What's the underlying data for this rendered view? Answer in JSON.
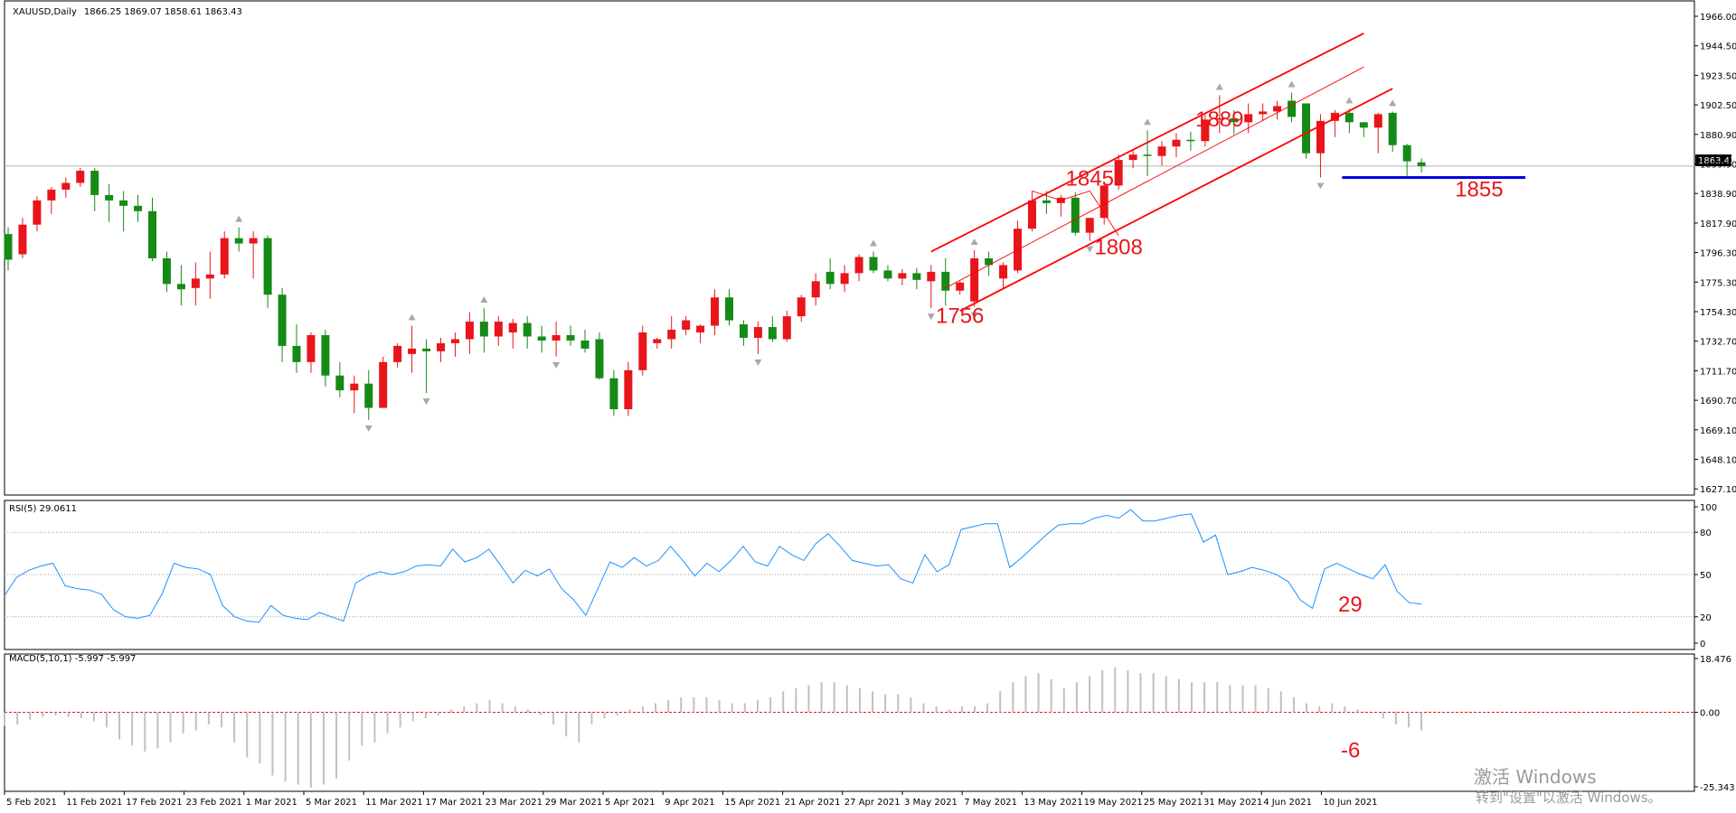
{
  "header": {
    "symbol_label": "XAUUSD,Daily",
    "ohlc_label": "1866.25 1869.07 1858.61 1863.43"
  },
  "price_axis": {
    "ticks": [
      "1966.00",
      "1944.50",
      "1923.50",
      "1902.50",
      "1880.90",
      "1859.90",
      "1838.90",
      "1817.90",
      "1796.30",
      "1775.30",
      "1754.30",
      "1732.70",
      "1711.70",
      "1690.70",
      "1669.10",
      "1648.10",
      "1627.10"
    ],
    "current_price_label": "1863.43",
    "current_price": 1863.43,
    "ylim": [
      1622,
      1972
    ]
  },
  "time_axis": {
    "ticks": [
      "5 Feb 2021",
      "11 Feb 2021",
      "17 Feb 2021",
      "23 Feb 2021",
      "1 Mar 2021",
      "5 Mar 2021",
      "11 Mar 2021",
      "17 Mar 2021",
      "23 Mar 2021",
      "29 Mar 2021",
      "5 Apr 2021",
      "9 Apr 2021",
      "15 Apr 2021",
      "21 Apr 2021",
      "27 Apr 2021",
      "3 May 2021",
      "7 May 2021",
      "13 May 2021",
      "19 May 2021",
      "25 May 2021",
      "31 May 2021",
      "4 Jun 2021",
      "10 Jun 2021"
    ]
  },
  "chart_data": [
    {
      "type": "candlestick",
      "title": "XAUUSD,Daily",
      "ylim": [
        1622,
        1972
      ],
      "colors": {
        "up": "#e8151b",
        "down": "#168a16",
        "doji": "#168a16"
      },
      "candles": [
        [
          1813,
          1818,
          1786,
          1794
        ],
        [
          1798,
          1825,
          1795,
          1820
        ],
        [
          1820,
          1841,
          1815,
          1838
        ],
        [
          1838,
          1848,
          1828,
          1846
        ],
        [
          1846,
          1855,
          1840,
          1851
        ],
        [
          1851,
          1862,
          1848,
          1860
        ],
        [
          1860,
          1862,
          1830,
          1842
        ],
        [
          1842,
          1850,
          1822,
          1838
        ],
        [
          1838,
          1845,
          1815,
          1834
        ],
        [
          1834,
          1842,
          1822,
          1830
        ],
        [
          1830,
          1840,
          1793,
          1795
        ],
        [
          1795,
          1800,
          1770,
          1776
        ],
        [
          1776,
          1790,
          1760,
          1772
        ],
        [
          1773,
          1792,
          1760,
          1780
        ],
        [
          1780,
          1800,
          1765,
          1783
        ],
        [
          1783,
          1815,
          1780,
          1810
        ],
        [
          1810,
          1818,
          1800,
          1806
        ],
        [
          1806,
          1815,
          1780,
          1810
        ],
        [
          1810,
          1812,
          1758,
          1768
        ],
        [
          1768,
          1773,
          1718,
          1730
        ],
        [
          1730,
          1746,
          1710,
          1718
        ],
        [
          1718,
          1740,
          1710,
          1738
        ],
        [
          1738,
          1742,
          1700,
          1708
        ],
        [
          1708,
          1718,
          1692,
          1697
        ],
        [
          1697,
          1708,
          1680,
          1702
        ],
        [
          1702,
          1712,
          1675,
          1684
        ],
        [
          1684,
          1722,
          1684,
          1718
        ],
        [
          1718,
          1732,
          1714,
          1730
        ],
        [
          1724,
          1745,
          1710,
          1728
        ],
        [
          1728,
          1735,
          1695,
          1726
        ],
        [
          1726,
          1736,
          1718,
          1732
        ],
        [
          1732,
          1740,
          1722,
          1735
        ],
        [
          1735,
          1755,
          1724,
          1748
        ],
        [
          1748,
          1758,
          1725,
          1737
        ],
        [
          1737,
          1752,
          1730,
          1748
        ],
        [
          1740,
          1750,
          1728,
          1747
        ],
        [
          1747,
          1752,
          1728,
          1737
        ],
        [
          1737,
          1745,
          1725,
          1734
        ],
        [
          1734,
          1748,
          1722,
          1738
        ],
        [
          1738,
          1745,
          1730,
          1734
        ],
        [
          1734,
          1742,
          1725,
          1728
        ],
        [
          1735,
          1740,
          1705,
          1706
        ],
        [
          1706,
          1712,
          1678,
          1683
        ],
        [
          1683,
          1718,
          1678,
          1712
        ],
        [
          1712,
          1745,
          1708,
          1740
        ],
        [
          1732,
          1736,
          1728,
          1735
        ],
        [
          1735,
          1752,
          1728,
          1742
        ],
        [
          1742,
          1752,
          1738,
          1749
        ],
        [
          1740,
          1746,
          1732,
          1745
        ],
        [
          1745,
          1772,
          1738,
          1766
        ],
        [
          1766,
          1772,
          1745,
          1749
        ],
        [
          1746,
          1749,
          1730,
          1736
        ],
        [
          1736,
          1748,
          1724,
          1744
        ],
        [
          1744,
          1752,
          1733,
          1735
        ],
        [
          1735,
          1756,
          1733,
          1752
        ],
        [
          1752,
          1768,
          1748,
          1766
        ],
        [
          1766,
          1784,
          1760,
          1778
        ],
        [
          1785,
          1795,
          1772,
          1776
        ],
        [
          1776,
          1790,
          1770,
          1784
        ],
        [
          1784,
          1798,
          1778,
          1796
        ],
        [
          1796,
          1800,
          1784,
          1786
        ],
        [
          1786,
          1790,
          1778,
          1780
        ],
        [
          1780,
          1787,
          1775,
          1784
        ],
        [
          1784,
          1788,
          1772,
          1779
        ],
        [
          1778,
          1790,
          1758,
          1785
        ],
        [
          1785,
          1795,
          1760,
          1771
        ],
        [
          1771,
          1778,
          1768,
          1777
        ],
        [
          1763,
          1801,
          1759,
          1795
        ],
        [
          1795,
          1800,
          1782,
          1790
        ],
        [
          1780,
          1792,
          1772,
          1790
        ],
        [
          1786,
          1823,
          1784,
          1817
        ],
        [
          1817,
          1845,
          1815,
          1838
        ],
        [
          1838,
          1845,
          1828,
          1836
        ],
        [
          1836,
          1842,
          1826,
          1840
        ],
        [
          1840,
          1844,
          1812,
          1814
        ],
        [
          1814,
          1825,
          1808,
          1825
        ],
        [
          1825,
          1852,
          1820,
          1849
        ],
        [
          1849,
          1872,
          1846,
          1868
        ],
        [
          1868,
          1875,
          1862,
          1872
        ],
        [
          1872,
          1890,
          1856,
          1871
        ],
        [
          1871,
          1882,
          1864,
          1878
        ],
        [
          1878,
          1888,
          1870,
          1883
        ],
        [
          1883,
          1889,
          1875,
          1882
        ],
        [
          1882,
          1903,
          1878,
          1898
        ],
        [
          1898,
          1916,
          1888,
          1899
        ],
        [
          1899,
          1905,
          1887,
          1896
        ],
        [
          1896,
          1910,
          1888,
          1902
        ],
        [
          1902,
          1910,
          1897,
          1904
        ],
        [
          1904,
          1912,
          1898,
          1908
        ],
        [
          1912,
          1918,
          1896,
          1900
        ],
        [
          1910,
          1910,
          1869,
          1873
        ],
        [
          1873,
          1902,
          1855,
          1897
        ],
        [
          1897,
          1905,
          1885,
          1903
        ],
        [
          1903,
          1906,
          1888,
          1896
        ],
        [
          1896,
          1896,
          1885,
          1892
        ],
        [
          1892,
          1903,
          1873,
          1902
        ],
        [
          1903,
          1904,
          1874,
          1879
        ],
        [
          1879,
          1880,
          1856,
          1867
        ],
        [
          1866.25,
          1869.07,
          1858.61,
          1863.43
        ]
      ]
    },
    {
      "type": "line",
      "title": "RSI(5) 29.0611",
      "ylim": [
        0,
        100
      ],
      "ticks": [
        100,
        80,
        50,
        20,
        0
      ],
      "tick_labels": [
        "100",
        "80",
        "50",
        "20",
        "0"
      ],
      "levels": [
        80,
        50,
        20
      ],
      "color": "#1e90ff",
      "series": [
        {
          "values": [
            35,
            48,
            53,
            56,
            58,
            42,
            40,
            39,
            36,
            25,
            20,
            19,
            21,
            36,
            58,
            55,
            54,
            50,
            28,
            20,
            17,
            16,
            28,
            21,
            19,
            18,
            23,
            20,
            17,
            44,
            49,
            52,
            50,
            52,
            56,
            57,
            56,
            68,
            59,
            62,
            68,
            56,
            44,
            53,
            49,
            54,
            40,
            32,
            21,
            40,
            59,
            55,
            62,
            56,
            60,
            70,
            60,
            49,
            58,
            52,
            60,
            70,
            59,
            56,
            70,
            64,
            60,
            72,
            79,
            70,
            60,
            58,
            56,
            57,
            47,
            44,
            64,
            52,
            57,
            82,
            84,
            86,
            86,
            55,
            62,
            70,
            78,
            85,
            86,
            86,
            90,
            92,
            90,
            96,
            88,
            88,
            90,
            92,
            93,
            73,
            78,
            50,
            52,
            55,
            53,
            50,
            45,
            32,
            26,
            54,
            58,
            54,
            50,
            47,
            57,
            38,
            30,
            29
          ]
        }
      ]
    },
    {
      "type": "bar",
      "title": "MACD(5,10,1) -5.997 -5.997",
      "ylim": [
        -25.343,
        18.476
      ],
      "ticks": [
        18.476,
        0.0,
        -25.343
      ],
      "tick_labels": [
        "18.476",
        "0.00",
        "-25.343"
      ],
      "signal_line": 0,
      "colors": {
        "bar": "#c0c0c0",
        "signal": "#e8151b"
      },
      "values": [
        -4.5,
        -4,
        -2.5,
        -1.5,
        -1,
        -1.5,
        -2,
        -3,
        -5,
        -9,
        -11,
        -13,
        -12,
        -10,
        -7,
        -6,
        -4,
        -5,
        -10,
        -15,
        -17,
        -21,
        -23,
        -24,
        -25,
        -24,
        -22,
        -16,
        -11,
        -10,
        -7,
        -5,
        -3,
        -2,
        -1,
        1,
        2,
        3,
        4,
        3,
        2,
        1,
        -1,
        -4,
        -8,
        -10,
        -4,
        -2,
        -1,
        1,
        2,
        3,
        4,
        5,
        5,
        5,
        4,
        3,
        3,
        4,
        5,
        7,
        8,
        9,
        10,
        10,
        9,
        8,
        7,
        6,
        6,
        5,
        3,
        2,
        1,
        2,
        2,
        3,
        7,
        10,
        12,
        13,
        11,
        8,
        10,
        12,
        14,
        15,
        14,
        13,
        13,
        12,
        11,
        10,
        10,
        10,
        9,
        9,
        9,
        8,
        7,
        5,
        3,
        2,
        3,
        2,
        1,
        0,
        -2,
        -4,
        -5,
        -5.997
      ]
    }
  ],
  "annotations": [
    {
      "text": "1889",
      "price": 1893
    },
    {
      "text": "1845",
      "price": 1849
    },
    {
      "text": "1808",
      "price": 1798
    },
    {
      "text": "1756",
      "price": 1747
    },
    {
      "text": "1855",
      "price": 1841
    }
  ],
  "side_annotations": [
    {
      "text": "29",
      "pane": "rsi",
      "value": 29
    },
    {
      "text": "-6",
      "pane": "macd",
      "value": -6
    }
  ],
  "drawings": {
    "channel_color": "#ff0000",
    "support_color": "#0000dd",
    "support_price": 1855
  },
  "watermark": {
    "line1": "激活 Windows",
    "line2": "转到\"设置\"以激活 Windows。"
  }
}
